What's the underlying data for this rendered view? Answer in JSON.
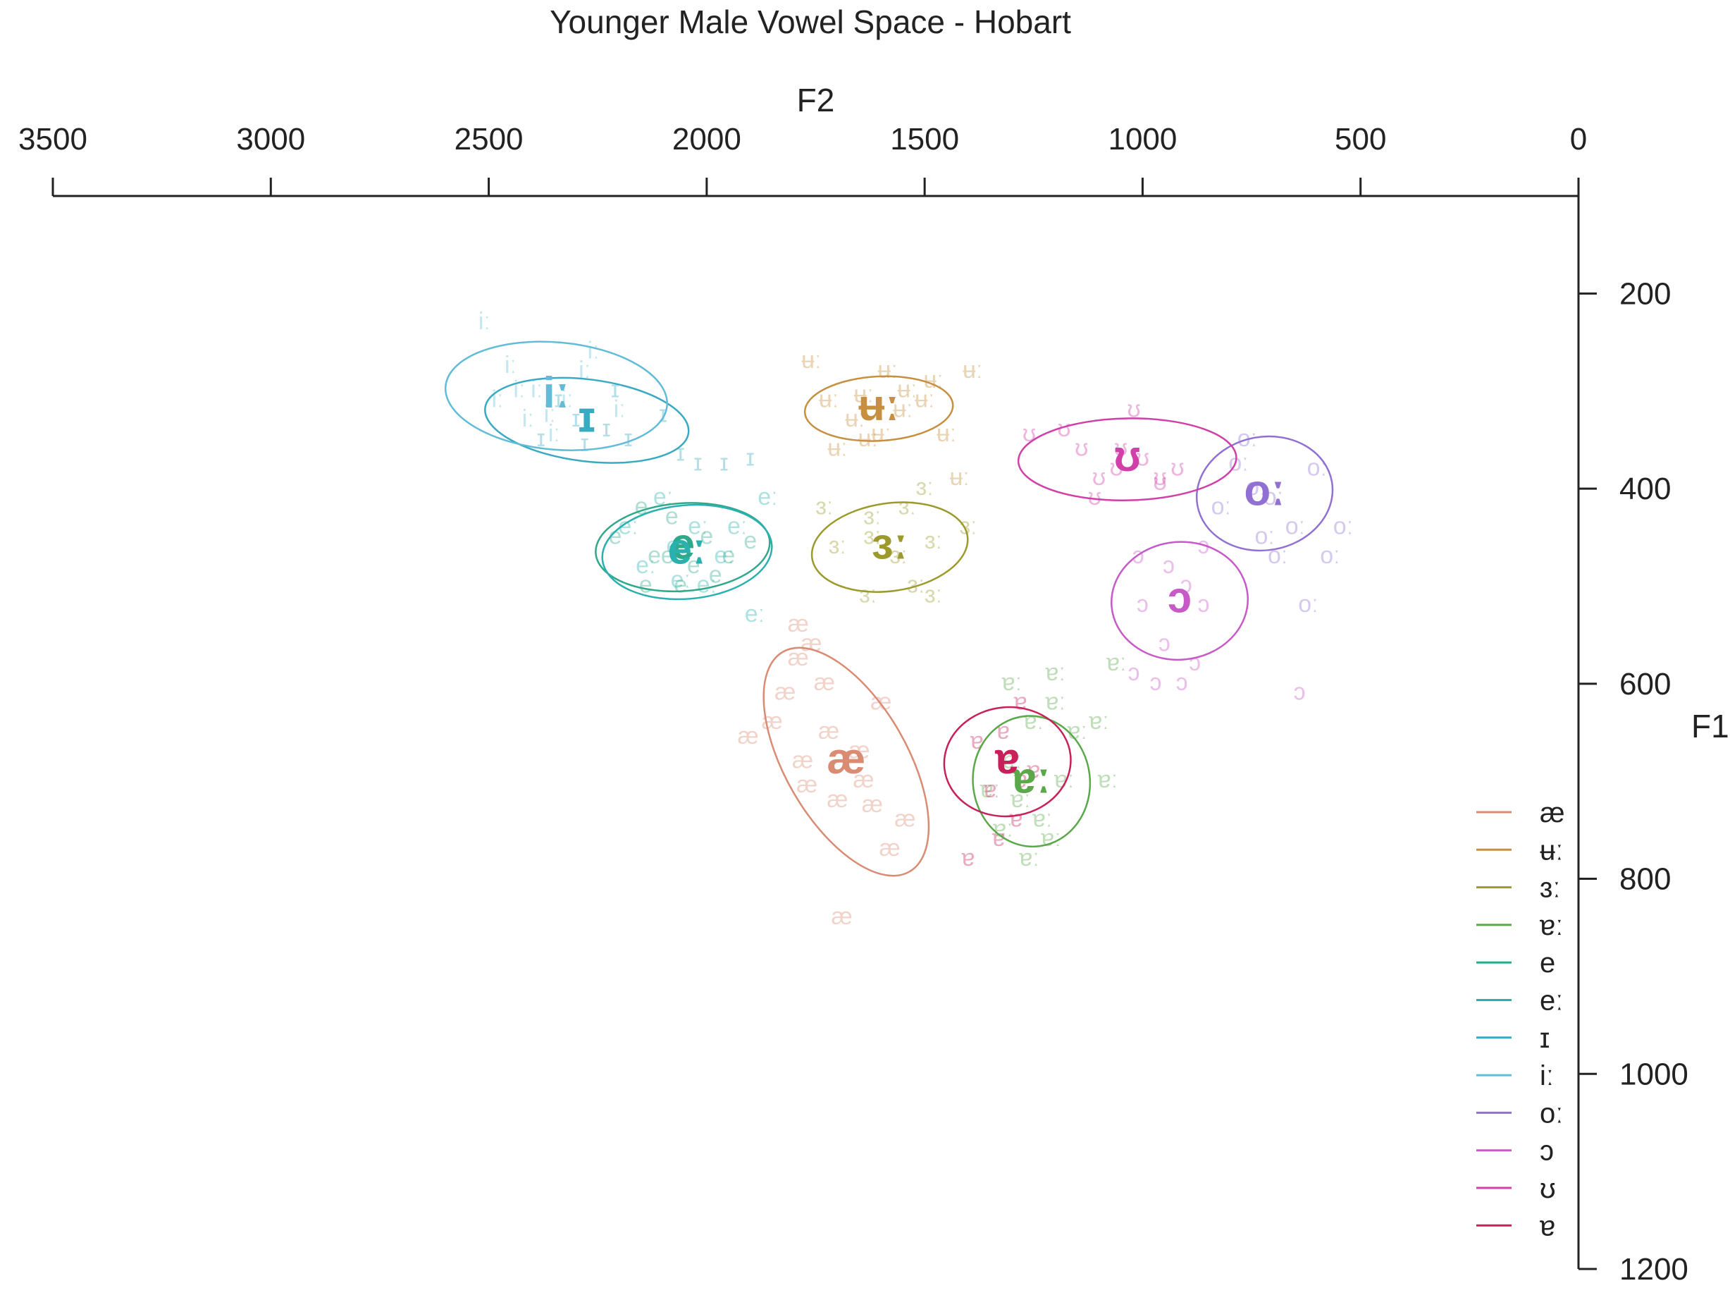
{
  "chart_data": {
    "type": "scatter",
    "title": "Younger Male Vowel Space - Hobart",
    "xlabel": "F2",
    "ylabel": "F1",
    "xlim": [
      3500,
      0
    ],
    "ylim": [
      1200,
      100
    ],
    "x_ticks": [
      "3500",
      "3000",
      "2500",
      "2000",
      "1500",
      "1000",
      "500",
      "0"
    ],
    "y_ticks": [
      "200",
      "400",
      "600",
      "800",
      "1000",
      "1200"
    ],
    "x_axis_position": "top",
    "y_axis_position": "right",
    "grid": false,
    "legend_position": "bottom-right",
    "series": [
      {
        "name": "æ",
        "color": "#d98b73",
        "centroid": [
          1680,
          680
        ],
        "ellipse": {
          "rx": 140,
          "ry": 130,
          "angle_deg": -30
        },
        "points": [
          [
            1760,
            560
          ],
          [
            1790,
            575
          ],
          [
            1850,
            640
          ],
          [
            1720,
            650
          ],
          [
            1640,
            700
          ],
          [
            1700,
            720
          ],
          [
            1620,
            725
          ],
          [
            1580,
            770
          ],
          [
            1545,
            740
          ],
          [
            1770,
            705
          ],
          [
            1905,
            655
          ],
          [
            1820,
            610
          ],
          [
            1730,
            600
          ],
          [
            1790,
            540
          ],
          [
            1600,
            620
          ],
          [
            1780,
            680
          ],
          [
            1650,
            670
          ],
          [
            1690,
            840
          ]
        ]
      },
      {
        "name": "ʉː",
        "color": "#c69040",
        "centroid": [
          1605,
          318
        ],
        "ellipse": {
          "rx": 170,
          "ry": 33,
          "angle_deg": -3
        },
        "points": [
          [
            1760,
            270
          ],
          [
            1720,
            310
          ],
          [
            1640,
            305
          ],
          [
            1600,
            345
          ],
          [
            1500,
            310
          ],
          [
            1480,
            290
          ],
          [
            1660,
            330
          ],
          [
            1550,
            320
          ],
          [
            1420,
            390
          ],
          [
            1390,
            280
          ],
          [
            1700,
            360
          ],
          [
            1630,
            350
          ],
          [
            1540,
            300
          ],
          [
            1585,
            280
          ],
          [
            1450,
            345
          ]
        ]
      },
      {
        "name": "ɜː",
        "color": "#9c9a2c",
        "centroid": [
          1580,
          460
        ],
        "ellipse": {
          "rx": 180,
          "ry": 45,
          "angle_deg": -8
        },
        "points": [
          [
            1730,
            420
          ],
          [
            1700,
            460
          ],
          [
            1620,
            450
          ],
          [
            1560,
            470
          ],
          [
            1520,
            500
          ],
          [
            1480,
            455
          ],
          [
            1620,
            430
          ],
          [
            1540,
            420
          ],
          [
            1480,
            510
          ],
          [
            1630,
            510
          ],
          [
            1400,
            440
          ],
          [
            1500,
            400
          ]
        ]
      },
      {
        "name": "ɐː",
        "color": "#5aa84a",
        "centroid": [
          1255,
          700
        ],
        "ellipse": {
          "rx": 150,
          "ry": 60,
          "angle_deg": 83
        },
        "points": [
          [
            1250,
            640
          ],
          [
            1300,
            600
          ],
          [
            1200,
            620
          ],
          [
            1180,
            700
          ],
          [
            1230,
            740
          ],
          [
            1260,
            780
          ],
          [
            1300,
            680
          ],
          [
            1150,
            650
          ],
          [
            1280,
            720
          ],
          [
            1210,
            760
          ],
          [
            1320,
            750
          ],
          [
            1350,
            710
          ],
          [
            1200,
            590
          ],
          [
            1100,
            640
          ],
          [
            1060,
            580
          ],
          [
            1080,
            700
          ]
        ]
      },
      {
        "name": "e",
        "color": "#30a88a",
        "centroid": [
          2055,
          460
        ],
        "ellipse": {
          "rx": 200,
          "ry": 45,
          "angle_deg": -4
        },
        "points": [
          [
            2150,
            420
          ],
          [
            2080,
            430
          ],
          [
            2000,
            450
          ],
          [
            1950,
            470
          ],
          [
            2120,
            470
          ],
          [
            2060,
            500
          ],
          [
            1980,
            490
          ],
          [
            2210,
            450
          ],
          [
            2140,
            500
          ],
          [
            1900,
            455
          ],
          [
            2090,
            470
          ],
          [
            2030,
            480
          ]
        ]
      },
      {
        "name": "eː",
        "color": "#2bb0b0",
        "centroid": [
          2045,
          465
        ],
        "ellipse": {
          "rx": 195,
          "ry": 48,
          "angle_deg": -5
        },
        "points": [
          [
            2180,
            440
          ],
          [
            2100,
            410
          ],
          [
            2020,
            440
          ],
          [
            1960,
            470
          ],
          [
            2060,
            495
          ],
          [
            2140,
            480
          ],
          [
            1860,
            410
          ],
          [
            1890,
            530
          ],
          [
            1930,
            440
          ],
          [
            2070,
            460
          ],
          [
            2000,
            500
          ]
        ]
      },
      {
        "name": "ɪ",
        "color": "#3aaac2",
        "centroid": [
          2275,
          330
        ],
        "ellipse": {
          "rx": 235,
          "ry": 42,
          "angle_deg": 7
        },
        "points": [
          [
            2340,
            310
          ],
          [
            2300,
            330
          ],
          [
            2230,
            340
          ],
          [
            2180,
            350
          ],
          [
            2280,
            355
          ],
          [
            2380,
            350
          ],
          [
            2100,
            325
          ],
          [
            2060,
            365
          ],
          [
            2020,
            375
          ],
          [
            1960,
            375
          ],
          [
            1900,
            370
          ],
          [
            2210,
            300
          ]
        ]
      },
      {
        "name": "iː",
        "color": "#62bcd8",
        "centroid": [
          2345,
          305
        ],
        "ellipse": {
          "rx": 255,
          "ry": 55,
          "angle_deg": 5
        },
        "points": [
          [
            2450,
            275
          ],
          [
            2390,
            300
          ],
          [
            2320,
            310
          ],
          [
            2280,
            280
          ],
          [
            2410,
            330
          ],
          [
            2350,
            345
          ],
          [
            2480,
            310
          ],
          [
            2510,
            230
          ],
          [
            2260,
            260
          ],
          [
            2200,
            320
          ],
          [
            2430,
            300
          ],
          [
            2360,
            325
          ]
        ]
      },
      {
        "name": "oː",
        "color": "#9070d2",
        "centroid": [
          720,
          405
        ],
        "ellipse": {
          "rx": 130,
          "ry": 70,
          "angle_deg": 80
        },
        "points": [
          [
            780,
            375
          ],
          [
            740,
            400
          ],
          [
            700,
            410
          ],
          [
            650,
            440
          ],
          [
            600,
            380
          ],
          [
            570,
            470
          ],
          [
            690,
            470
          ],
          [
            620,
            520
          ],
          [
            720,
            450
          ],
          [
            760,
            350
          ],
          [
            820,
            420
          ],
          [
            540,
            440
          ]
        ]
      },
      {
        "name": "ɔ",
        "color": "#c85ac8",
        "centroid": [
          915,
          515
        ],
        "ellipse": {
          "rx": 135,
          "ry": 70,
          "angle_deg": 85
        },
        "points": [
          [
            940,
            480
          ],
          [
            900,
            500
          ],
          [
            860,
            520
          ],
          [
            950,
            560
          ],
          [
            880,
            580
          ],
          [
            1000,
            520
          ],
          [
            860,
            460
          ],
          [
            910,
            600
          ],
          [
            970,
            600
          ],
          [
            1020,
            590
          ],
          [
            1010,
            470
          ],
          [
            640,
            610
          ]
        ]
      },
      {
        "name": "ʊ",
        "color": "#d040a8",
        "centroid": [
          1035,
          370
        ],
        "ellipse": {
          "rx": 250,
          "ry": 42,
          "angle_deg": -1
        },
        "points": [
          [
            1050,
            360
          ],
          [
            1000,
            370
          ],
          [
            960,
            390
          ],
          [
            1100,
            390
          ],
          [
            1140,
            360
          ],
          [
            920,
            380
          ],
          [
            1180,
            340
          ],
          [
            1260,
            345
          ],
          [
            1020,
            320
          ],
          [
            960,
            395
          ],
          [
            1060,
            380
          ],
          [
            1110,
            410
          ]
        ]
      },
      {
        "name": "ɐ",
        "color": "#c8205a",
        "centroid": [
          1310,
          680
        ],
        "ellipse": {
          "rx": 125,
          "ry": 65,
          "angle_deg": 84
        },
        "points": [
          [
            1320,
            650
          ],
          [
            1280,
            700
          ],
          [
            1350,
            710
          ],
          [
            1290,
            740
          ],
          [
            1250,
            690
          ],
          [
            1380,
            660
          ],
          [
            1400,
            780
          ],
          [
            1280,
            620
          ],
          [
            1330,
            760
          ]
        ]
      }
    ]
  }
}
